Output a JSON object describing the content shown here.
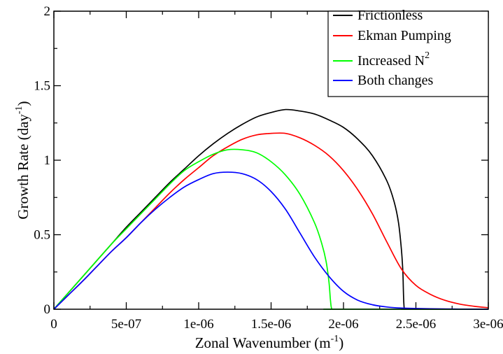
{
  "chart_data": {
    "type": "line",
    "xlabel": "Zonal Wavenumber (m",
    "xlabel_sup": "-1",
    "xlabel_end": ")",
    "ylabel": "Growth Rate (day",
    "ylabel_sup": "-1",
    "ylabel_end": ")",
    "xlim": [
      0,
      3e-06
    ],
    "ylim": [
      0,
      2
    ],
    "xticks": [
      0,
      5e-07,
      1e-06,
      1.5e-06,
      2e-06,
      2.5e-06,
      3e-06
    ],
    "xtick_labels": [
      "0",
      "5e-07",
      "1e-06",
      "1.5e-06",
      "2e-06",
      "2.5e-06",
      "3e-06"
    ],
    "yticks": [
      0,
      0.5,
      1,
      1.5,
      2
    ],
    "ytick_labels": [
      "0",
      "0.5",
      "1",
      "1.5",
      "2"
    ],
    "grid": false,
    "legend_position": "top-right",
    "series": [
      {
        "name": "Frictionless",
        "legend_sup": "",
        "color": "#000000",
        "x": [
          0,
          1e-07,
          2e-07,
          3e-07,
          4e-07,
          5e-07,
          6e-07,
          7e-07,
          8e-07,
          9e-07,
          1e-06,
          1.1e-06,
          1.2e-06,
          1.3e-06,
          1.4e-06,
          1.5e-06,
          1.6e-06,
          1.7e-06,
          1.8e-06,
          1.9e-06,
          2e-06,
          2.1e-06,
          2.2e-06,
          2.3e-06,
          2.35e-06,
          2.38e-06,
          2.4e-06,
          2.41e-06,
          2.42e-06,
          2.45e-06,
          3e-06
        ],
        "y": [
          0,
          0.11,
          0.22,
          0.33,
          0.44,
          0.55,
          0.65,
          0.75,
          0.85,
          0.94,
          1.03,
          1.11,
          1.18,
          1.24,
          1.29,
          1.32,
          1.34,
          1.33,
          1.31,
          1.27,
          1.22,
          1.14,
          1.03,
          0.86,
          0.72,
          0.58,
          0.4,
          0.25,
          0.0,
          0.0,
          0.0
        ]
      },
      {
        "name": "Ekman Pumping",
        "legend_sup": "",
        "color": "#ff0000",
        "x": [
          0,
          1e-07,
          2e-07,
          3e-07,
          4e-07,
          5e-07,
          6e-07,
          7e-07,
          8e-07,
          9e-07,
          1e-06,
          1.1e-06,
          1.2e-06,
          1.3e-06,
          1.4e-06,
          1.5e-06,
          1.6e-06,
          1.7e-06,
          1.8e-06,
          1.9e-06,
          2e-06,
          2.1e-06,
          2.2e-06,
          2.3e-06,
          2.4e-06,
          2.5e-06,
          2.6e-06,
          2.7e-06,
          2.8e-06,
          2.9e-06,
          3e-06
        ],
        "y": [
          0,
          0.095,
          0.19,
          0.29,
          0.39,
          0.48,
          0.58,
          0.68,
          0.78,
          0.87,
          0.95,
          1.03,
          1.09,
          1.14,
          1.17,
          1.18,
          1.18,
          1.15,
          1.1,
          1.03,
          0.93,
          0.8,
          0.64,
          0.45,
          0.27,
          0.16,
          0.1,
          0.06,
          0.035,
          0.02,
          0.01
        ]
      },
      {
        "name": "Increased N",
        "legend_sup": "2",
        "color": "#00ff00",
        "x": [
          0,
          1e-07,
          2e-07,
          3e-07,
          4e-07,
          5e-07,
          6e-07,
          7e-07,
          8e-07,
          9e-07,
          1e-06,
          1.1e-06,
          1.2e-06,
          1.3e-06,
          1.4e-06,
          1.5e-06,
          1.6e-06,
          1.7e-06,
          1.8e-06,
          1.85e-06,
          1.88e-06,
          1.9e-06,
          1.91e-06,
          1.92e-06,
          1.95e-06,
          3e-06
        ],
        "y": [
          0,
          0.11,
          0.22,
          0.33,
          0.44,
          0.54,
          0.64,
          0.74,
          0.84,
          0.93,
          0.99,
          1.04,
          1.07,
          1.07,
          1.05,
          0.99,
          0.9,
          0.77,
          0.58,
          0.44,
          0.32,
          0.18,
          0.06,
          0.0,
          0.0,
          0.0
        ]
      },
      {
        "name": "Both changes",
        "legend_sup": "",
        "color": "#0000ff",
        "x": [
          0,
          1e-07,
          2e-07,
          3e-07,
          4e-07,
          5e-07,
          6e-07,
          7e-07,
          8e-07,
          9e-07,
          1e-06,
          1.1e-06,
          1.2e-06,
          1.3e-06,
          1.4e-06,
          1.5e-06,
          1.6e-06,
          1.7e-06,
          1.8e-06,
          1.9e-06,
          2e-06,
          2.1e-06,
          2.2e-06,
          2.3e-06,
          2.4e-06,
          2.6e-06,
          2.8e-06,
          3e-06
        ],
        "y": [
          0,
          0.095,
          0.19,
          0.29,
          0.39,
          0.48,
          0.58,
          0.67,
          0.75,
          0.82,
          0.87,
          0.91,
          0.92,
          0.91,
          0.87,
          0.79,
          0.67,
          0.51,
          0.35,
          0.22,
          0.12,
          0.06,
          0.03,
          0.015,
          0.008,
          0.003,
          0.001,
          0.0
        ]
      }
    ]
  }
}
